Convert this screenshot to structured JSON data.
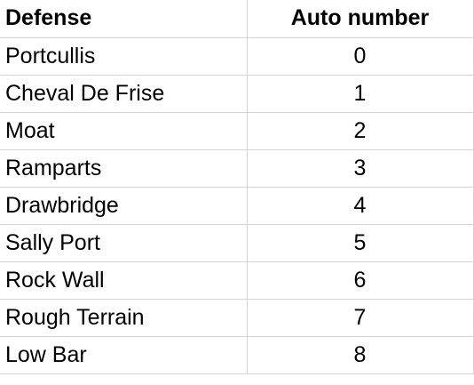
{
  "table": {
    "headers": [
      "Defense",
      "Auto number"
    ],
    "rows": [
      {
        "defense": "Portcullis",
        "number": "0"
      },
      {
        "defense": "Cheval De Frise",
        "number": "1"
      },
      {
        "defense": "Moat",
        "number": "2"
      },
      {
        "defense": "Ramparts",
        "number": "3"
      },
      {
        "defense": "Drawbridge",
        "number": "4"
      },
      {
        "defense": "Sally Port",
        "number": "5"
      },
      {
        "defense": "Rock Wall",
        "number": "6"
      },
      {
        "defense": "Rough Terrain",
        "number": "7"
      },
      {
        "defense": "Low Bar",
        "number": "8"
      }
    ]
  }
}
